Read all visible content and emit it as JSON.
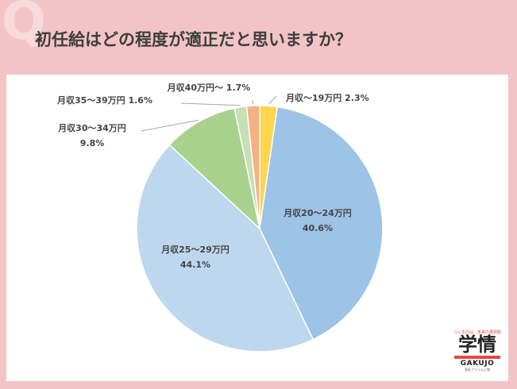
{
  "chart_data": {
    "type": "pie",
    "title": "初任給はどの程度が適正だと思いますか？",
    "slices": [
      {
        "label": "月収～19万円",
        "value": 2.3,
        "value_text": "2.3%",
        "color": "#ffd54f"
      },
      {
        "label": "月収20～24万円",
        "value": 40.6,
        "value_text": "40.6%",
        "color": "#9dc3e6"
      },
      {
        "label": "月収25～29万円",
        "value": 44.1,
        "value_text": "44.1%",
        "color": "#bdd7ee"
      },
      {
        "label": "月収30～34万円",
        "value": 9.8,
        "value_text": "9.8%",
        "color": "#a9d18e"
      },
      {
        "label": "月収35～39万円",
        "value": 1.6,
        "value_text": "1.6%",
        "color": "#c5e0b4"
      },
      {
        "label": "月収40万円～",
        "value": 1.7,
        "value_text": "1.7%",
        "color": "#f4b183"
      }
    ],
    "legend": "none"
  },
  "decor": {
    "q_mark": "Q"
  },
  "logo": {
    "tagline": "つくるのは、未来の選択肢",
    "name": "学情",
    "romaji": "GAKUJO",
    "footer": "東証プライム上場"
  }
}
